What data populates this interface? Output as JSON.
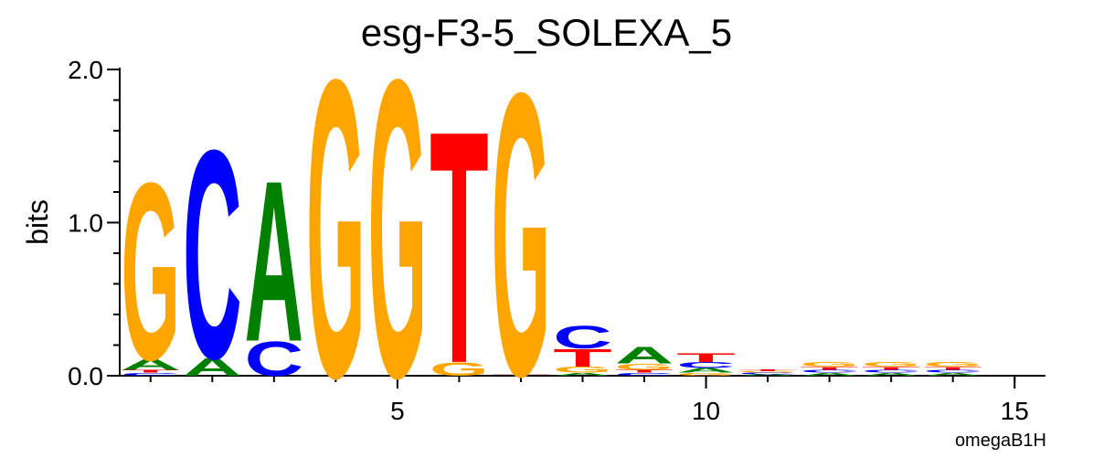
{
  "chart_data": {
    "type": "logo",
    "title": "esg-F3-5_SOLEXA_5",
    "y_label": "bits",
    "note": "omegaB1H",
    "x": [
      1,
      2,
      3,
      4,
      5,
      6,
      7,
      8,
      9,
      10,
      11,
      12,
      13,
      14
    ],
    "series": [
      {
        "name": "A",
        "color": "#008000",
        "values": [
          0.07,
          0.12,
          1.08,
          0,
          0,
          0,
          0,
          0.02,
          0.11,
          0.03,
          0.01,
          0.02,
          0.02,
          0.02
        ]
      },
      {
        "name": "C",
        "color": "#0000ff",
        "values": [
          0.02,
          1.4,
          0.23,
          0,
          0,
          0,
          0,
          0.15,
          0.02,
          0.04,
          0.01,
          0.02,
          0.02,
          0.02
        ]
      },
      {
        "name": "G",
        "color": "#ffa500",
        "values": [
          1.19,
          0,
          0,
          2.0,
          2.0,
          0.09,
          1.9,
          0.04,
          0.04,
          0.02,
          0.01,
          0.03,
          0.03,
          0.03
        ]
      },
      {
        "name": "T",
        "color": "#ff0000",
        "values": [
          0.02,
          0,
          0,
          0,
          0,
          1.56,
          0.01,
          0.12,
          0.02,
          0.06,
          0.01,
          0.02,
          0.02,
          0.02
        ]
      }
    ],
    "xlim": [
      0.5,
      15.5
    ],
    "xticks": [
      5,
      10,
      15
    ],
    "xminorticks": [
      1,
      2,
      3,
      4,
      5,
      6,
      7,
      8,
      9,
      10,
      11,
      12,
      13,
      14,
      15
    ],
    "ylim": [
      0,
      2.0
    ],
    "yticks": [
      {
        "value": 0,
        "label": "0.0"
      },
      {
        "value": 1,
        "label": "1.0"
      },
      {
        "value": 2,
        "label": "2.0"
      }
    ],
    "yminorticks": [
      0.2,
      0.4,
      0.6,
      0.8,
      1.2,
      1.4,
      1.6,
      1.8
    ]
  }
}
